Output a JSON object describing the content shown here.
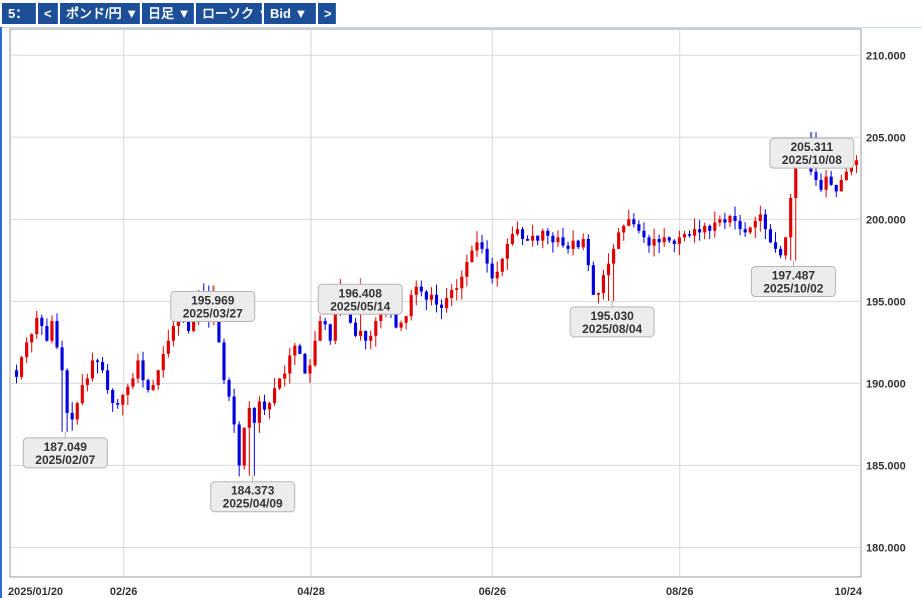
{
  "toolbar": {
    "items": [
      {
        "label": "5：",
        "interactable": true
      },
      {
        "label": "<",
        "interactable": true
      },
      {
        "label": "ポンド/円 ▼",
        "interactable": true
      },
      {
        "label": "日足 ▼",
        "interactable": true
      },
      {
        "label": "ローソク ▼",
        "interactable": true
      },
      {
        "label": "Bid ▼",
        "interactable": true
      },
      {
        "label": ">",
        "interactable": true
      }
    ]
  },
  "colors": {
    "up": "#e00000",
    "down": "#0000e0",
    "grid": "#d8d8d8",
    "axis_text": "#333333",
    "toolbar_bg": "#1c4f97"
  },
  "chart_data": {
    "type": "candlestick",
    "instrument": "ポンド/円",
    "timeframe": "日足",
    "price_type": "Bid",
    "xlim": [
      "2025/01/20",
      "2025/10/24"
    ],
    "ylim": [
      178.2,
      211.6
    ],
    "yticks": [
      "210.000",
      "205.000",
      "200.000",
      "195.000",
      "190.000",
      "185.000",
      "180.000"
    ],
    "xticks": [
      "2025/01/20",
      "02/26",
      "04/28",
      "06/26",
      "08/26",
      "10/24"
    ],
    "grid": true,
    "annotations": [
      {
        "value": "187.049",
        "date": "2025/02/07",
        "position": "below"
      },
      {
        "value": "195.969",
        "date": "2025/03/27",
        "position": "above"
      },
      {
        "value": "184.373",
        "date": "2025/04/09",
        "position": "below"
      },
      {
        "value": "196.408",
        "date": "2025/05/14",
        "position": "above"
      },
      {
        "value": "195.030",
        "date": "2025/08/04",
        "position": "below"
      },
      {
        "value": "205.311",
        "date": "2025/10/08",
        "position": "above"
      },
      {
        "value": "197.487",
        "date": "2025/10/02",
        "position": "below"
      }
    ],
    "closes": [
      190.4,
      191.6,
      192.5,
      193.0,
      194.0,
      193.5,
      192.6,
      193.8,
      192.2,
      190.8,
      188.2,
      187.8,
      188.8,
      189.9,
      190.3,
      191.4,
      191.3,
      190.8,
      189.6,
      188.8,
      188.7,
      189.3,
      189.8,
      190.3,
      191.4,
      190.2,
      189.6,
      189.9,
      190.8,
      191.8,
      192.6,
      193.5,
      194.2,
      194.0,
      193.2,
      194.1,
      195.5,
      195.0,
      194.0,
      195.2,
      192.5,
      190.2,
      189.2,
      187.5,
      185.0,
      187.3,
      188.5,
      187.6,
      188.9,
      188.4,
      188.8,
      189.7,
      190.3,
      190.6,
      191.7,
      192.3,
      191.8,
      190.6,
      191.1,
      192.6,
      193.8,
      193.6,
      192.6,
      194.2,
      195.8,
      194.8,
      193.7,
      192.9,
      193.2,
      192.6,
      192.9,
      193.8,
      194.3,
      195.3,
      194.6,
      193.4,
      193.7,
      194.1,
      195.4,
      195.9,
      195.6,
      195.1,
      195.4,
      194.8,
      194.6,
      195.2,
      195.7,
      195.8,
      196.5,
      197.4,
      198.1,
      198.6,
      198.2,
      197.3,
      196.4,
      196.8,
      197.6,
      198.5,
      199.1,
      199.4,
      198.8,
      198.7,
      199.0,
      198.7,
      199.3,
      199.0,
      198.6,
      198.9,
      198.4,
      198.2,
      198.7,
      198.3,
      198.8,
      197.2,
      195.4,
      195.5,
      196.6,
      197.3,
      198.2,
      199.2,
      199.6,
      200.0,
      199.7,
      199.3,
      198.9,
      198.4,
      198.8,
      198.6,
      198.9,
      198.7,
      198.5,
      198.9,
      199.1,
      199.0,
      199.4,
      199.2,
      199.6,
      199.3,
      199.8,
      200.0,
      199.8,
      200.2,
      199.9,
      199.4,
      199.2,
      199.5,
      199.9,
      200.3,
      199.4,
      198.6,
      198.2,
      197.8,
      198.9,
      201.3,
      203.4,
      204.6,
      203.7,
      202.9,
      202.4,
      201.8,
      202.6,
      202.1,
      201.7,
      202.4,
      202.9,
      203.3,
      203.6
    ]
  }
}
